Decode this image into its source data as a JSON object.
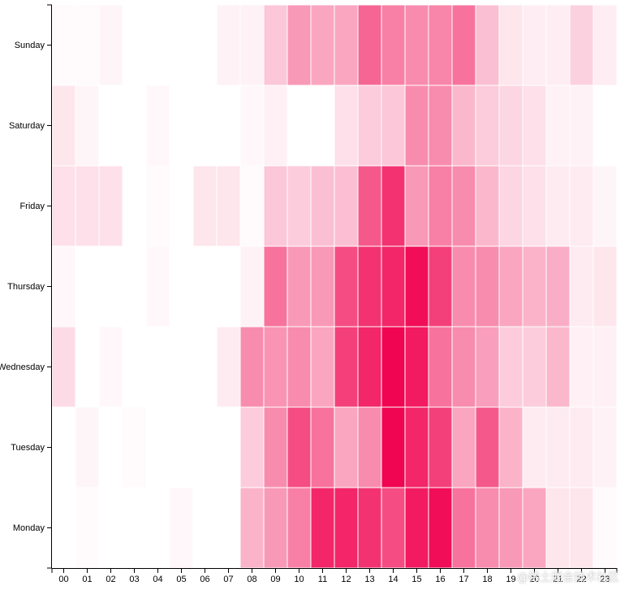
{
  "chart_data": {
    "type": "heatmap",
    "x_categories": [
      "00",
      "01",
      "02",
      "03",
      "04",
      "05",
      "06",
      "07",
      "08",
      "09",
      "10",
      "11",
      "12",
      "13",
      "14",
      "15",
      "16",
      "17",
      "18",
      "19",
      "20",
      "21",
      "22",
      "23"
    ],
    "y_categories": [
      "Sunday",
      "Saturday",
      "Friday",
      "Thursday",
      "Wednesday",
      "Tuesday",
      "Monday"
    ],
    "color_scale": {
      "low": "#ffffff",
      "high": "#f0004e"
    },
    "values": [
      [
        0.02,
        0.02,
        0.04,
        0.0,
        0.0,
        0.0,
        0.0,
        0.05,
        0.05,
        0.22,
        0.4,
        0.35,
        0.35,
        0.6,
        0.5,
        0.45,
        0.48,
        0.55,
        0.25,
        0.1,
        0.07,
        0.07,
        0.18,
        0.07
      ],
      [
        0.1,
        0.04,
        0.0,
        0.0,
        0.03,
        0.0,
        0.0,
        0.0,
        0.03,
        0.06,
        0.0,
        0.0,
        0.12,
        0.2,
        0.22,
        0.45,
        0.45,
        0.28,
        0.2,
        0.16,
        0.12,
        0.05,
        0.05,
        0.0
      ],
      [
        0.12,
        0.12,
        0.12,
        0.0,
        0.02,
        0.0,
        0.1,
        0.1,
        0.02,
        0.22,
        0.2,
        0.25,
        0.25,
        0.65,
        0.8,
        0.4,
        0.5,
        0.45,
        0.28,
        0.16,
        0.12,
        0.08,
        0.08,
        0.04
      ],
      [
        0.03,
        0.0,
        0.0,
        0.0,
        0.03,
        0.0,
        0.0,
        0.0,
        0.05,
        0.55,
        0.4,
        0.4,
        0.7,
        0.8,
        0.85,
        0.95,
        0.75,
        0.45,
        0.45,
        0.35,
        0.3,
        0.32,
        0.08,
        0.1
      ],
      [
        0.14,
        0.0,
        0.03,
        0.0,
        0.0,
        0.0,
        0.0,
        0.08,
        0.45,
        0.42,
        0.45,
        0.35,
        0.75,
        0.85,
        0.98,
        0.9,
        0.55,
        0.45,
        0.38,
        0.2,
        0.2,
        0.28,
        0.06,
        0.06
      ],
      [
        0.0,
        0.04,
        0.0,
        0.02,
        0.0,
        0.0,
        0.0,
        0.0,
        0.2,
        0.45,
        0.7,
        0.55,
        0.35,
        0.45,
        0.98,
        0.85,
        0.75,
        0.35,
        0.65,
        0.3,
        0.08,
        0.08,
        0.08,
        0.05
      ],
      [
        0.0,
        0.02,
        0.0,
        0.0,
        0.0,
        0.03,
        0.0,
        0.0,
        0.3,
        0.4,
        0.5,
        0.85,
        0.85,
        0.8,
        0.7,
        0.9,
        0.95,
        0.55,
        0.45,
        0.4,
        0.35,
        0.1,
        0.1,
        0.02
      ]
    ]
  },
  "watermark": "@稀土掘金技术社区"
}
